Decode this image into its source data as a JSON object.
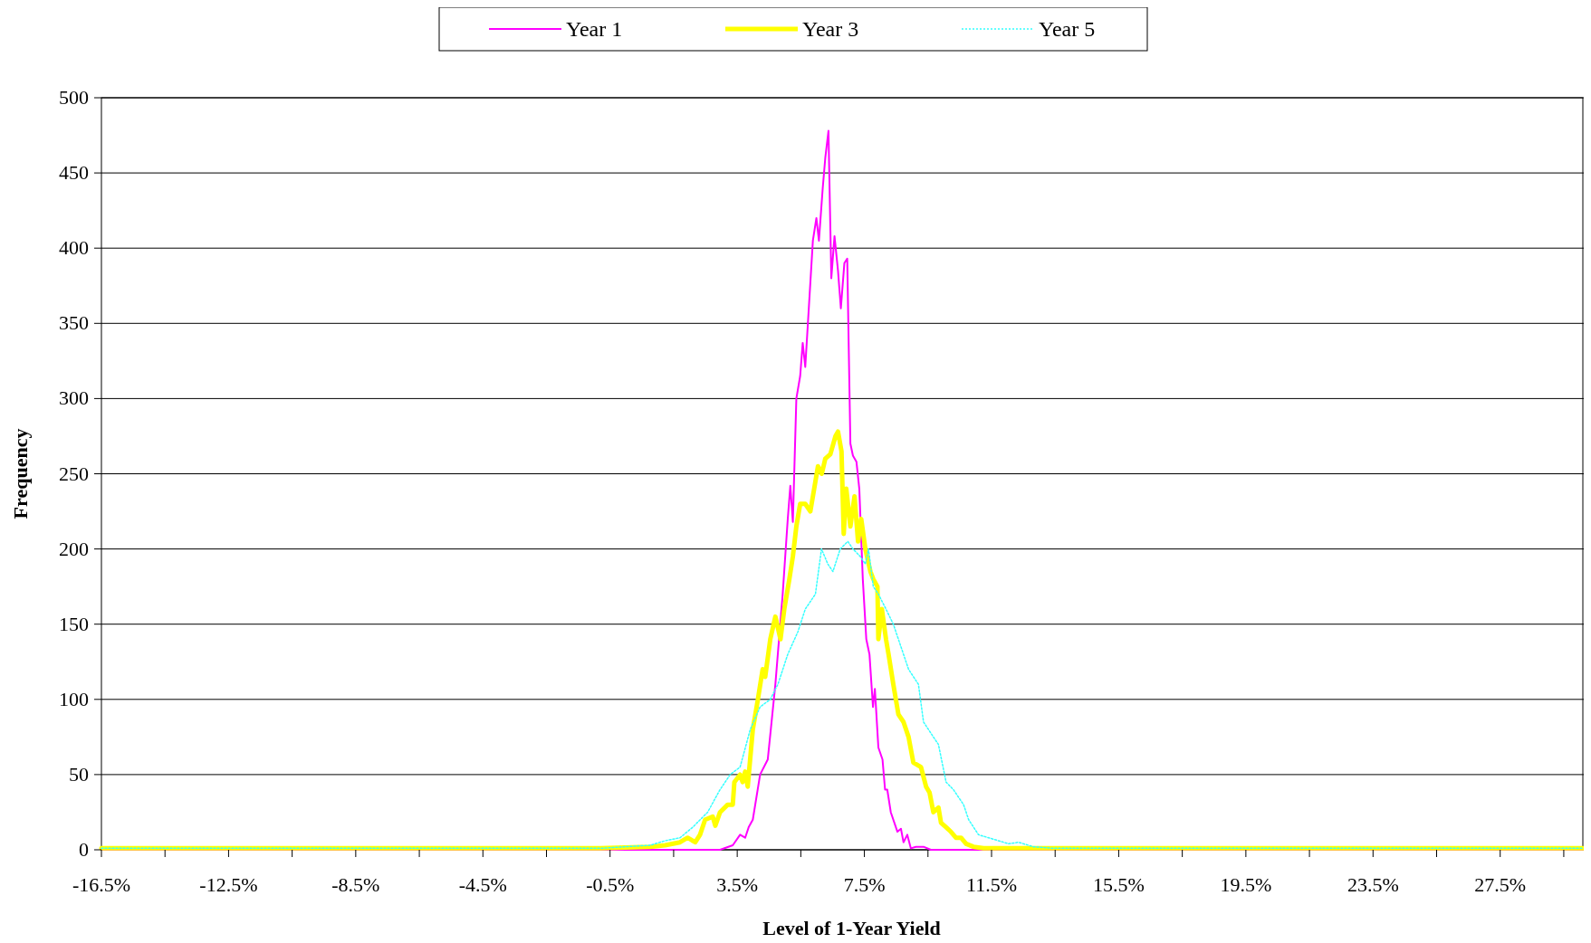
{
  "chart_data": {
    "type": "line",
    "xlabel": "Level of 1-Year Yield",
    "ylabel": "Frequency",
    "xlim": [
      -16.5,
      30.1
    ],
    "xticks": [
      {
        "value": -16.5,
        "label": "-16.5%"
      },
      {
        "value": -14.5,
        "label": null
      },
      {
        "value": -12.5,
        "label": "-12.5%"
      },
      {
        "value": -10.5,
        "label": null
      },
      {
        "value": -8.5,
        "label": "-8.5%"
      },
      {
        "value": -6.5,
        "label": null
      },
      {
        "value": -4.5,
        "label": "-4.5%"
      },
      {
        "value": -2.5,
        "label": null
      },
      {
        "value": -0.5,
        "label": "-0.5%"
      },
      {
        "value": 1.5,
        "label": null
      },
      {
        "value": 3.5,
        "label": "3.5%"
      },
      {
        "value": 5.5,
        "label": null
      },
      {
        "value": 7.5,
        "label": "7.5%"
      },
      {
        "value": 9.5,
        "label": null
      },
      {
        "value": 11.5,
        "label": "11.5%"
      },
      {
        "value": 13.5,
        "label": null
      },
      {
        "value": 15.5,
        "label": "15.5%"
      },
      {
        "value": 17.5,
        "label": null
      },
      {
        "value": 19.5,
        "label": "19.5%"
      },
      {
        "value": 21.5,
        "label": null
      },
      {
        "value": 23.5,
        "label": "23.5%"
      },
      {
        "value": 25.5,
        "label": null
      },
      {
        "value": 27.5,
        "label": "27.5%"
      },
      {
        "value": 29.5,
        "label": null
      }
    ],
    "ylim": [
      0,
      500
    ],
    "yticks": [
      0,
      50,
      100,
      150,
      200,
      250,
      300,
      350,
      400,
      450,
      500
    ],
    "grid": "y",
    "legend": "top",
    "series": [
      {
        "name": "Year 1",
        "color": "#ff00ff",
        "line_style": "solid",
        "x": [
          -16.5,
          2.96,
          3.36,
          3.59,
          3.75,
          3.86,
          3.99,
          4.22,
          4.46,
          4.7,
          4.93,
          5.09,
          5.17,
          5.25,
          5.36,
          5.48,
          5.56,
          5.64,
          5.88,
          5.99,
          6.07,
          6.19,
          6.27,
          6.37,
          6.46,
          6.56,
          6.67,
          6.76,
          6.87,
          6.96,
          7.06,
          7.14,
          7.25,
          7.34,
          7.45,
          7.56,
          7.66,
          7.77,
          7.83,
          7.94,
          8.07,
          8.15,
          8.22,
          8.33,
          8.54,
          8.65,
          8.73,
          8.85,
          8.96,
          9.12,
          9.36,
          9.59,
          30.1
        ],
        "values": [
          0,
          0,
          3,
          10,
          8,
          15,
          20,
          50,
          60,
          110,
          170,
          220,
          242,
          218,
          300,
          315,
          337,
          321,
          405,
          420,
          405,
          440,
          460,
          478,
          380,
          408,
          385,
          360,
          390,
          393,
          270,
          262,
          258,
          240,
          180,
          140,
          130,
          95,
          107,
          68,
          60,
          40,
          40,
          25,
          12,
          14,
          5,
          10,
          1,
          2,
          2,
          0,
          0
        ]
      },
      {
        "name": "Year 3",
        "color": "#ffff00",
        "line_style": "solid",
        "x": [
          -16.5,
          -0.81,
          0.76,
          1.23,
          1.7,
          1.94,
          2.18,
          2.33,
          2.49,
          2.73,
          2.81,
          2.96,
          3.2,
          3.36,
          3.41,
          3.59,
          3.67,
          3.75,
          3.83,
          3.99,
          4.15,
          4.3,
          4.38,
          4.54,
          4.7,
          4.86,
          4.98,
          5.14,
          5.25,
          5.36,
          5.48,
          5.64,
          5.8,
          5.96,
          6.04,
          6.16,
          6.27,
          6.43,
          6.59,
          6.67,
          6.78,
          6.85,
          6.93,
          7.06,
          7.19,
          7.3,
          7.4,
          7.53,
          7.69,
          7.78,
          7.91,
          7.94,
          8.05,
          8.18,
          8.26,
          8.41,
          8.57,
          8.73,
          8.89,
          9.04,
          9.28,
          9.44,
          9.55,
          9.67,
          9.83,
          9.91,
          10.07,
          10.22,
          10.38,
          10.54,
          10.7,
          10.93,
          11.25,
          11.72,
          12.35,
          30.1
        ],
        "values": [
          1,
          1,
          2,
          3,
          5,
          8,
          5,
          10,
          20,
          22,
          16,
          25,
          30,
          30,
          45,
          50,
          45,
          52,
          42,
          80,
          100,
          120,
          115,
          140,
          155,
          140,
          160,
          180,
          195,
          215,
          230,
          230,
          225,
          245,
          255,
          250,
          260,
          263,
          275,
          278,
          265,
          210,
          240,
          215,
          235,
          205,
          220,
          200,
          185,
          180,
          175,
          140,
          160,
          140,
          130,
          110,
          90,
          85,
          75,
          58,
          55,
          42,
          38,
          25,
          28,
          18,
          15,
          12,
          8,
          8,
          4,
          2,
          1,
          1,
          1,
          1
        ]
      },
      {
        "name": "Year 5",
        "color": "#33ffff",
        "line_style": "dotted",
        "x": [
          -16.5,
          -0.81,
          0.76,
          1.23,
          1.7,
          2.1,
          2.57,
          2.96,
          3.28,
          3.59,
          3.91,
          4.22,
          4.54,
          4.78,
          5.09,
          5.41,
          5.64,
          5.96,
          6.15,
          6.35,
          6.51,
          6.74,
          6.98,
          7.14,
          7.37,
          7.53,
          7.63,
          7.78,
          7.94,
          8.18,
          8.41,
          8.65,
          8.89,
          9.2,
          9.36,
          9.67,
          9.83,
          10.07,
          10.3,
          10.62,
          10.78,
          11.09,
          11.41,
          11.72,
          12.04,
          12.35,
          12.82,
          13.45,
          14.65,
          30.1
        ],
        "values": [
          1,
          1,
          3,
          6,
          8,
          15,
          25,
          40,
          50,
          55,
          80,
          95,
          100,
          110,
          130,
          145,
          160,
          170,
          200,
          190,
          185,
          200,
          205,
          200,
          195,
          190,
          200,
          175,
          170,
          160,
          150,
          135,
          120,
          110,
          85,
          75,
          70,
          45,
          40,
          30,
          20,
          10,
          8,
          6,
          4,
          5,
          2,
          1,
          1,
          1
        ]
      }
    ]
  }
}
